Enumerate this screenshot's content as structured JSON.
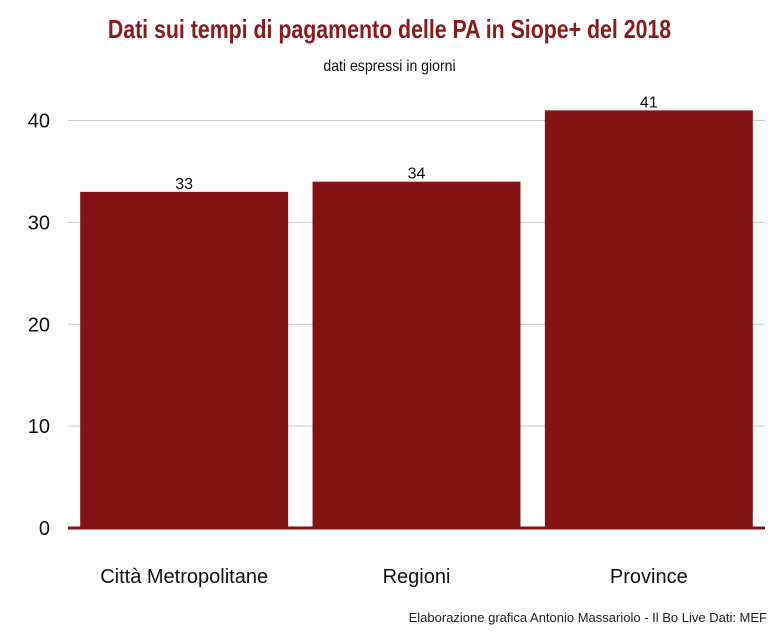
{
  "chart_data": {
    "type": "bar",
    "title": "Dati sui tempi di pagamento delle PA in Siope+ del 2018",
    "subtitle": "dati espressi in giorni",
    "caption": "Elaborazione grafica Antonio Massariolo - Il Bo Live Dati: MEF",
    "categories": [
      "Città Metropolitane",
      "Regioni",
      "Province"
    ],
    "values": [
      33,
      34,
      41
    ],
    "data_labels": [
      "33",
      "34",
      "41"
    ],
    "xlabel": "",
    "ylabel": "",
    "ylim": [
      0,
      43
    ],
    "yticks": [
      0,
      10,
      20,
      30,
      40
    ],
    "ytick_labels": [
      "0",
      "10",
      "20",
      "30",
      "40"
    ],
    "grid": true,
    "legend": "none",
    "colors": {
      "bar": "#841316",
      "title": "#8b1a1d",
      "baseline": "#841316"
    }
  }
}
